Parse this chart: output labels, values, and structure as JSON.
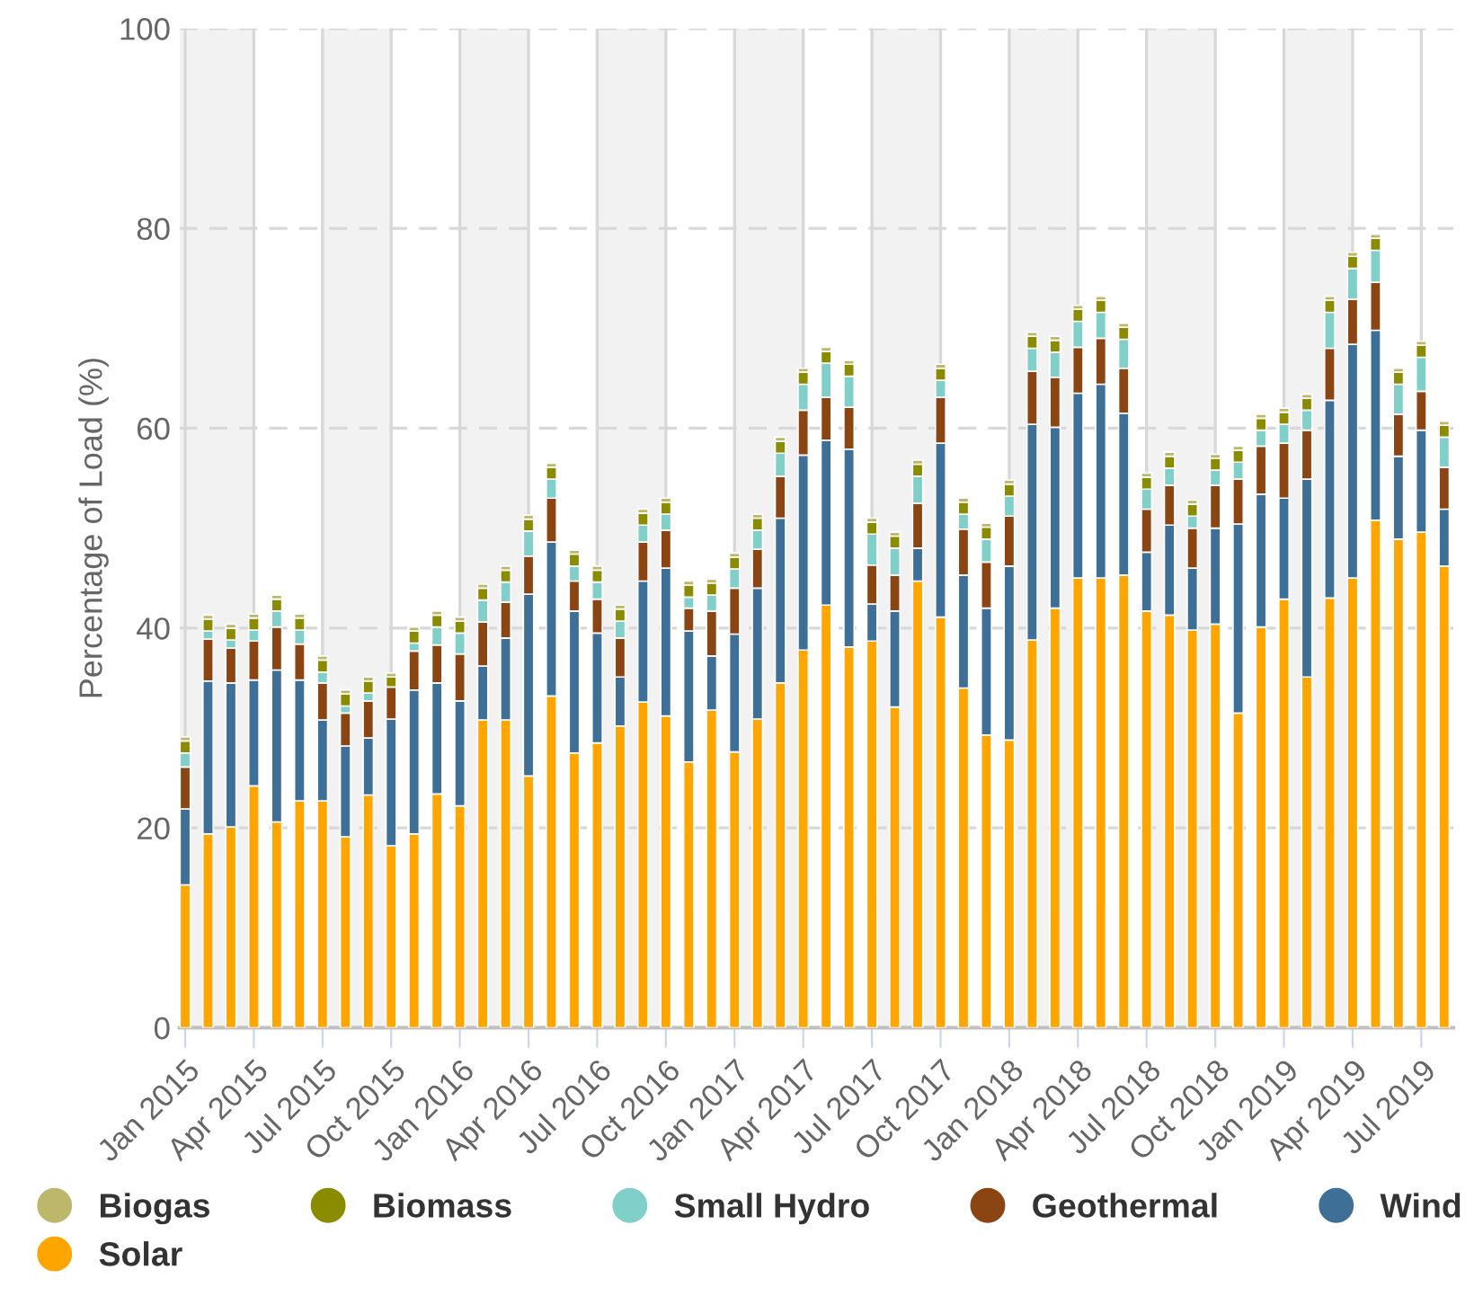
{
  "chart_data": {
    "type": "bar",
    "stacked": true,
    "ylabel": "Percentage of Load (%)",
    "categories": [
      "Jan 2015",
      null,
      null,
      "Apr 2015",
      null,
      null,
      "Jul 2015",
      null,
      null,
      "Oct 2015",
      null,
      null,
      "Jan 2016",
      null,
      null,
      "Apr 2016",
      null,
      null,
      "Jul 2016",
      null,
      null,
      "Oct 2016",
      null,
      null,
      "Jan 2017",
      null,
      null,
      "Apr 2017",
      null,
      null,
      "Jul 2017",
      null,
      null,
      "Oct 2017",
      null,
      null,
      "Jan 2018",
      null,
      null,
      "Apr 2018",
      null,
      null,
      "Jul 2018",
      null,
      null,
      "Oct 2018",
      null,
      null,
      "Jan 2019",
      null,
      null,
      "Apr 2019",
      null,
      null,
      "Jul 2019",
      null
    ],
    "series": [
      {
        "name": "Solar",
        "color": "#ffa500",
        "values": [
          14.3,
          19.4,
          20.1,
          24.2,
          20.6,
          22.7,
          22.7,
          19.1,
          23.3,
          18.2,
          19.4,
          23.4,
          22.2,
          30.8,
          30.8,
          25.2,
          33.2,
          27.5,
          28.5,
          30.2,
          32.6,
          31.2,
          26.6,
          31.8,
          27.6,
          30.9,
          34.5,
          37.8,
          42.3,
          38.1,
          38.7,
          32.1,
          44.7,
          41.1,
          34.0,
          29.3,
          28.8,
          38.8,
          42.0,
          45.0,
          45.0,
          45.3,
          41.7,
          41.3,
          39.8,
          40.4,
          31.5,
          40.1,
          42.9,
          35.1,
          43.0,
          45.0,
          50.8,
          48.9,
          49.6,
          46.2
        ]
      },
      {
        "name": "Wind",
        "color": "#3e6f96",
        "values": [
          7.6,
          15.3,
          14.4,
          10.6,
          15.2,
          12.1,
          8.1,
          9.1,
          5.7,
          12.7,
          14.4,
          11.1,
          10.5,
          5.4,
          8.2,
          18.2,
          15.4,
          14.2,
          11.0,
          4.9,
          12.1,
          14.8,
          13.1,
          5.4,
          11.8,
          13.1,
          16.5,
          19.5,
          16.5,
          19.8,
          3.7,
          9.6,
          3.3,
          17.4,
          11.3,
          12.7,
          17.4,
          21.6,
          18.1,
          18.5,
          19.4,
          16.2,
          5.9,
          9.0,
          6.2,
          9.6,
          18.9,
          13.3,
          10.1,
          19.8,
          19.8,
          23.4,
          19.0,
          8.3,
          10.2,
          5.7
        ]
      },
      {
        "name": "Geothermal",
        "color": "#8b4513",
        "values": [
          4.2,
          4.2,
          3.5,
          3.9,
          4.3,
          3.6,
          3.7,
          3.3,
          3.7,
          3.2,
          3.9,
          3.8,
          4.7,
          4.4,
          3.6,
          3.8,
          4.4,
          3.0,
          3.4,
          3.9,
          3.9,
          3.8,
          2.3,
          4.5,
          4.6,
          3.9,
          4.2,
          4.5,
          4.3,
          4.2,
          3.9,
          3.6,
          4.5,
          4.6,
          4.6,
          4.6,
          5.0,
          5.3,
          5.0,
          4.6,
          4.6,
          4.5,
          4.3,
          4.0,
          4.0,
          4.3,
          4.5,
          4.8,
          5.5,
          4.9,
          5.2,
          4.5,
          4.8,
          4.2,
          3.9,
          4.2
        ]
      },
      {
        "name": "Small Hydro",
        "color": "#80cfc9",
        "values": [
          1.4,
          0.8,
          0.8,
          1.1,
          1.6,
          1.4,
          1.1,
          0.7,
          0.8,
          null,
          0.8,
          1.8,
          2.1,
          2.2,
          2.0,
          2.5,
          1.9,
          1.5,
          1.7,
          1.7,
          1.7,
          1.6,
          1.1,
          1.6,
          1.9,
          1.9,
          2.3,
          2.6,
          3.4,
          3.1,
          3.1,
          2.7,
          2.7,
          1.7,
          1.5,
          2.3,
          2.0,
          2.3,
          2.5,
          2.6,
          2.6,
          2.9,
          2.0,
          1.7,
          1.2,
          1.5,
          1.7,
          1.6,
          1.9,
          2.0,
          3.6,
          3.1,
          3.2,
          3.0,
          3.4,
          3.0
        ]
      },
      {
        "name": "Biomass",
        "color": "#8b8b00",
        "values": [
          1.2,
          1.2,
          1.2,
          1.2,
          1.2,
          1.2,
          1.2,
          1.2,
          1.2,
          1.0,
          1.2,
          1.2,
          1.2,
          1.2,
          1.2,
          1.2,
          1.2,
          1.2,
          1.2,
          1.2,
          1.2,
          1.2,
          1.2,
          1.2,
          1.2,
          1.2,
          1.2,
          1.2,
          1.2,
          1.2,
          1.2,
          1.2,
          1.2,
          1.2,
          1.2,
          1.2,
          1.2,
          1.2,
          1.2,
          1.2,
          1.2,
          1.2,
          1.2,
          1.2,
          1.2,
          1.2,
          1.2,
          1.2,
          1.2,
          1.2,
          1.2,
          1.2,
          1.2,
          1.2,
          1.2,
          1.2
        ]
      },
      {
        "name": "Biogas",
        "color": "#bdb76b",
        "values": [
          0.4,
          0.4,
          0.4,
          0.4,
          0.4,
          0.4,
          0.4,
          0.4,
          0.4,
          0.4,
          0.4,
          0.4,
          0.4,
          0.4,
          0.4,
          0.4,
          0.4,
          0.4,
          0.4,
          0.4,
          0.4,
          0.4,
          0.4,
          0.4,
          0.4,
          0.4,
          0.4,
          0.4,
          0.4,
          0.4,
          0.4,
          0.4,
          0.4,
          0.4,
          0.4,
          0.4,
          0.4,
          0.4,
          0.4,
          0.4,
          0.4,
          0.4,
          0.4,
          0.4,
          0.4,
          0.4,
          0.4,
          0.4,
          0.4,
          0.4,
          0.4,
          0.4,
          0.4,
          0.4,
          0.4,
          0.4
        ]
      }
    ],
    "ylim": [
      0,
      100
    ],
    "yticks": [
      0,
      20,
      40,
      60,
      80,
      100
    ],
    "grid": true,
    "legend": "bottom",
    "bands": [
      {
        "axis": "x",
        "from": "Jan 2015",
        "to": "Apr 2015",
        "color": "#f2f2f2"
      },
      {
        "axis": "x",
        "from": "Jul 2015",
        "to": "Oct 2015",
        "color": "#f2f2f2"
      },
      {
        "axis": "x",
        "from": "Jan 2016",
        "to": "Apr 2016",
        "color": "#f2f2f2"
      },
      {
        "axis": "x",
        "from": "Jul 2016",
        "to": "Oct 2016",
        "color": "#f2f2f2"
      },
      {
        "axis": "x",
        "from": "Jan 2017",
        "to": "Apr 2017",
        "color": "#f2f2f2"
      },
      {
        "axis": "x",
        "from": "Jul 2017",
        "to": "Oct 2017",
        "color": "#f2f2f2"
      },
      {
        "axis": "x",
        "from": "Jan 2018",
        "to": "Apr 2018",
        "color": "#f2f2f2"
      },
      {
        "axis": "x",
        "from": "Jul 2018",
        "to": "Oct 2018",
        "color": "#f2f2f2"
      },
      {
        "axis": "x",
        "from": "Jan 2019",
        "to": "Apr 2019",
        "color": "#f2f2f2"
      }
    ]
  }
}
